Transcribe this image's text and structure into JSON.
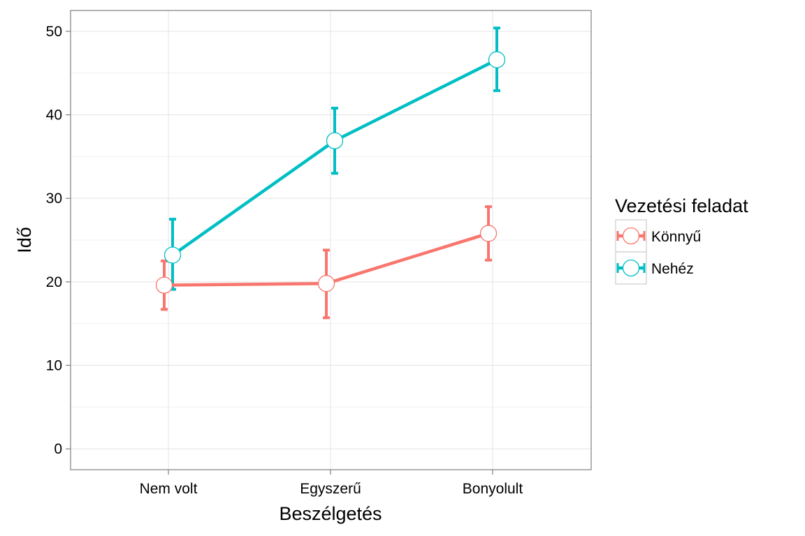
{
  "chart_data": {
    "type": "line",
    "title": "",
    "xlabel": "Beszélgetés",
    "ylabel": "Idő",
    "categories": [
      "Nem volt",
      "Egyszerű",
      "Bonyolult"
    ],
    "ylim": [
      -2.5,
      52.5
    ],
    "yticks": [
      0,
      10,
      20,
      30,
      40,
      50
    ],
    "grid": true,
    "legend": {
      "title": "Vezetési feladat",
      "placement": "right"
    },
    "error_bars": true,
    "series": [
      {
        "name": "Könnyű",
        "color": "#F8766D",
        "values": [
          19.6,
          19.8,
          25.8
        ],
        "err_low": [
          16.7,
          15.7,
          22.6
        ],
        "err_high": [
          22.5,
          23.8,
          29.0
        ]
      },
      {
        "name": "Nehéz",
        "color": "#00BFC4",
        "values": [
          23.2,
          36.9,
          46.6
        ],
        "err_low": [
          19.1,
          33.0,
          42.9
        ],
        "err_high": [
          27.5,
          40.8,
          50.4
        ]
      }
    ]
  }
}
